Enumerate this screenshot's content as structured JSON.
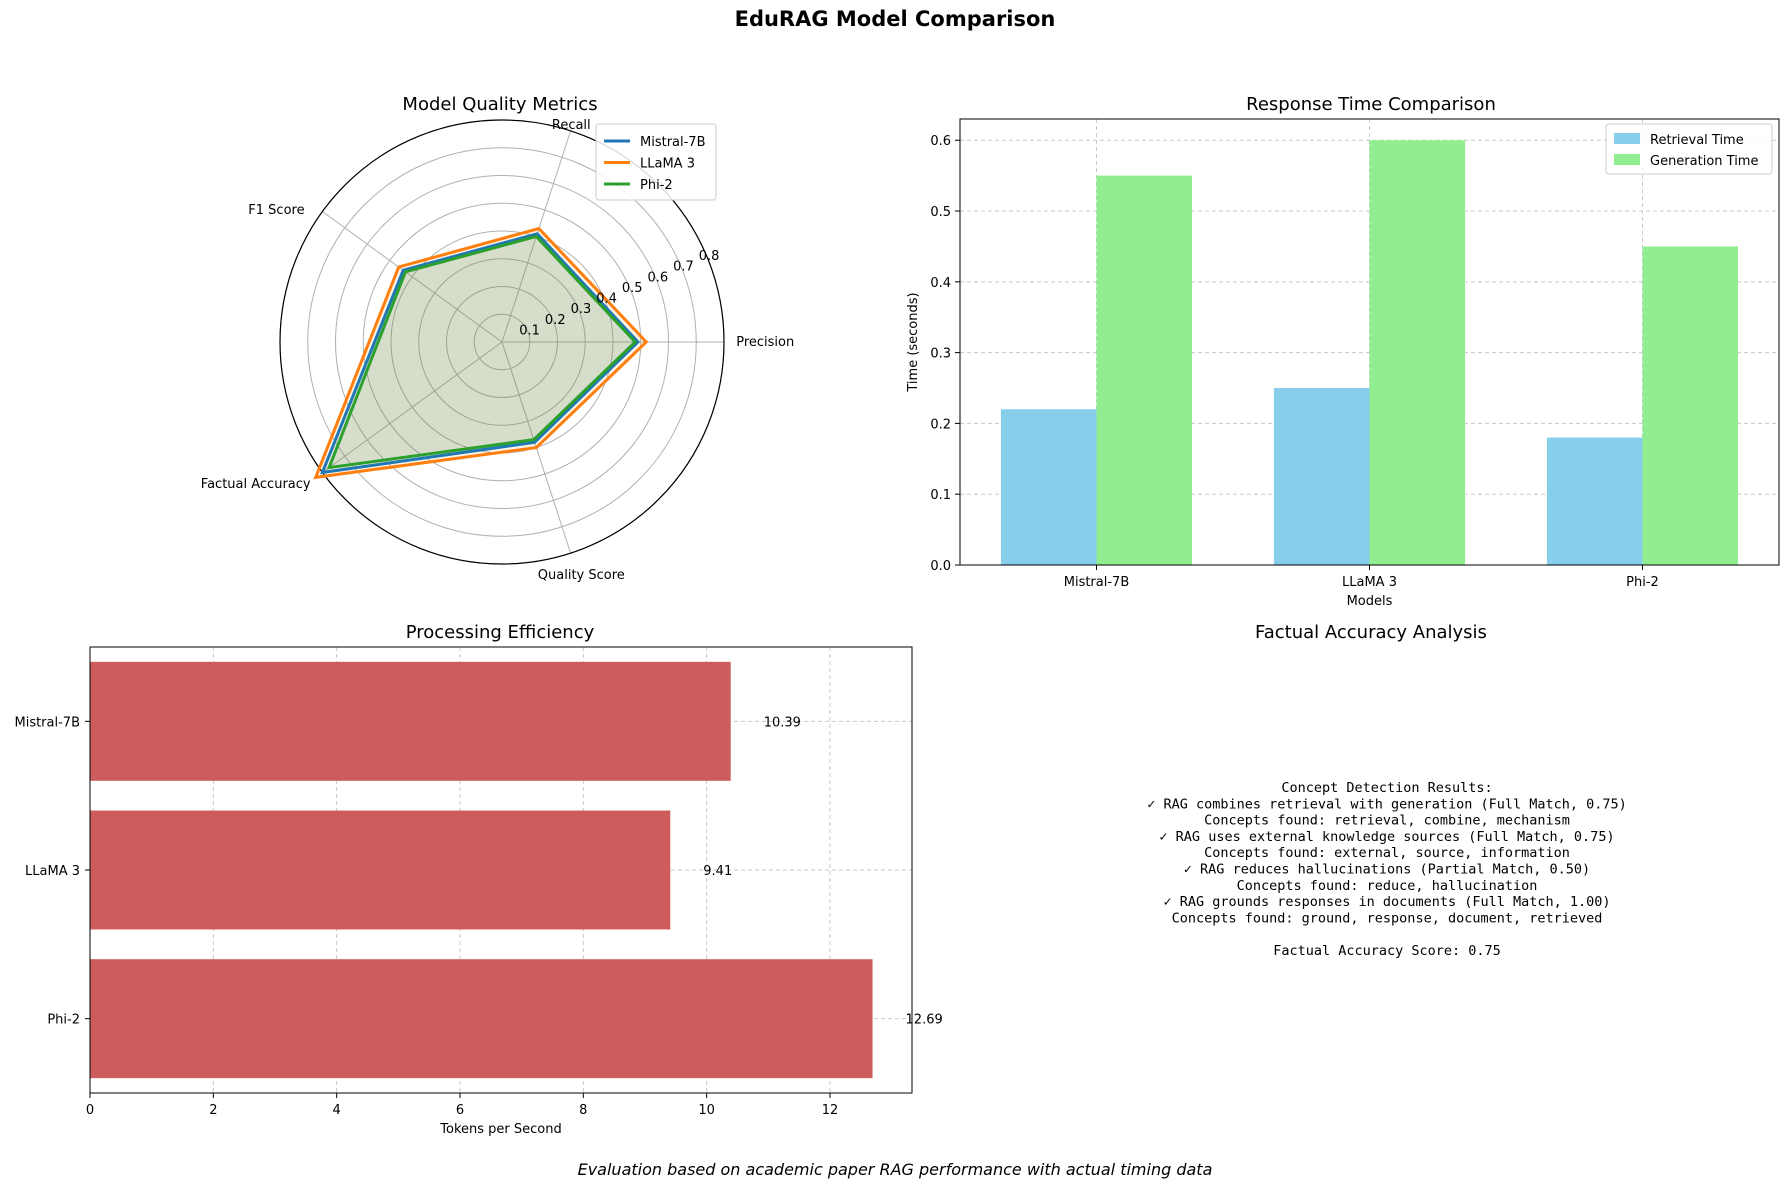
{
  "title": "EduRAG Model Comparison",
  "footer": "Evaluation based on academic paper RAG performance with actual timing data",
  "colors": {
    "mistral": "#1f77b4",
    "llama": "#ff7f0e",
    "phi": "#2ca02c",
    "retrieval": "#87ceeb",
    "generation": "#90ee90",
    "efficiency": "#cd5c5c"
  },
  "chart_data": [
    {
      "type": "radar",
      "title": "Model Quality Metrics",
      "axes": [
        "Precision",
        "Recall",
        "F1 Score",
        "Factual Accuracy",
        "Quality Score"
      ],
      "rticks": [
        "0.1",
        "0.2",
        "0.3",
        "0.4",
        "0.5",
        "0.6",
        "0.7",
        "0.8"
      ],
      "rlim": [
        0,
        0.8
      ],
      "grid": true,
      "legend_position": "upper-right",
      "series": [
        {
          "name": "Mistral-7B",
          "values": [
            0.49,
            0.41,
            0.44,
            0.8,
            0.38
          ]
        },
        {
          "name": "LLaMA 3",
          "values": [
            0.52,
            0.43,
            0.46,
            0.83,
            0.4
          ]
        },
        {
          "name": "Phi-2",
          "values": [
            0.48,
            0.4,
            0.43,
            0.77,
            0.37
          ]
        }
      ]
    },
    {
      "type": "bar",
      "title": "Response Time Comparison",
      "categories": [
        "Mistral-7B",
        "LLaMA 3",
        "Phi-2"
      ],
      "xlabel": "Models",
      "ylabel": "Time (seconds)",
      "ylim": [
        0,
        0.63
      ],
      "yticks": [
        "0.0",
        "0.1",
        "0.2",
        "0.3",
        "0.4",
        "0.5",
        "0.6"
      ],
      "grid": true,
      "legend_position": "upper-right",
      "series": [
        {
          "name": "Retrieval Time",
          "values": [
            0.22,
            0.25,
            0.18
          ]
        },
        {
          "name": "Generation Time",
          "values": [
            0.55,
            0.6,
            0.45
          ]
        }
      ]
    },
    {
      "type": "barh",
      "title": "Processing Efficiency",
      "categories": [
        "Mistral-7B",
        "LLaMA 3",
        "Phi-2"
      ],
      "values": [
        10.39,
        9.41,
        12.69
      ],
      "value_labels": [
        "10.39",
        "9.41",
        "12.69"
      ],
      "xlabel": "Tokens per Second",
      "xlim": [
        0,
        13.33
      ],
      "xticks": [
        "0",
        "2",
        "4",
        "6",
        "8",
        "10",
        "12"
      ],
      "grid": true
    }
  ],
  "accuracy_panel": {
    "title": "Factual Accuracy Analysis",
    "lines": [
      "Concept Detection Results:",
      "✓ RAG combines retrieval with generation (Full Match, 0.75)",
      "Concepts found: retrieval, combine, mechanism",
      "✓ RAG uses external knowledge sources (Full Match, 0.75)",
      "Concepts found: external, source, information",
      "✓ RAG reduces hallucinations (Partial Match, 0.50)",
      "Concepts found: reduce, hallucination",
      "✓ RAG grounds responses in documents (Full Match, 1.00)",
      "Concepts found: ground, response, document, retrieved",
      "",
      "Factual Accuracy Score: 0.75"
    ]
  }
}
